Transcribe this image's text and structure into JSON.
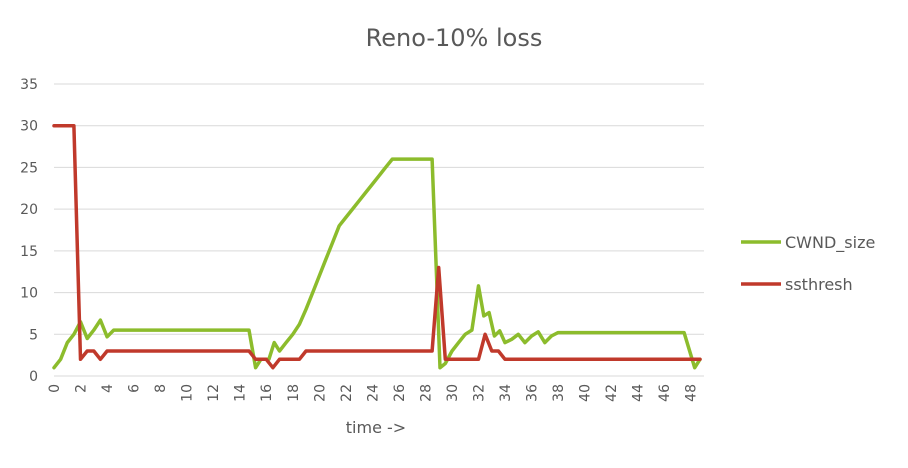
{
  "chart_data": {
    "type": "line",
    "title": "Reno-10% loss",
    "xlabel": "time ->",
    "ylabel": "",
    "ylim": [
      0,
      35
    ],
    "xlim": [
      0,
      49
    ],
    "yticks": [
      0,
      5,
      10,
      15,
      20,
      25,
      30,
      35
    ],
    "xticks": [
      0,
      2,
      4,
      6,
      8,
      10,
      12,
      14,
      16,
      18,
      20,
      22,
      24,
      26,
      28,
      30,
      32,
      34,
      36,
      38,
      40,
      42,
      44,
      46,
      48
    ],
    "grid": true,
    "legend_position": "right",
    "colors": {
      "CWND_size": "#8cbc2c",
      "ssthresh": "#c0392b"
    },
    "series": [
      {
        "name": "CWND_size",
        "color": "#8cbc2c",
        "points": [
          [
            0,
            1
          ],
          [
            0.5,
            2
          ],
          [
            1,
            4
          ],
          [
            1.5,
            5
          ],
          [
            2,
            6.5
          ],
          [
            2.5,
            4.5
          ],
          [
            3,
            5.5
          ],
          [
            3.5,
            6.7
          ],
          [
            4,
            4.7
          ],
          [
            4.5,
            5.5
          ],
          [
            5,
            5.5
          ],
          [
            10,
            5.5
          ],
          [
            14,
            5.5
          ],
          [
            14.7,
            5.5
          ],
          [
            15.2,
            1
          ],
          [
            15.6,
            2
          ],
          [
            16.2,
            2
          ],
          [
            16.6,
            4
          ],
          [
            17,
            3
          ],
          [
            17.5,
            4
          ],
          [
            18,
            5
          ],
          [
            18.5,
            6.2
          ],
          [
            19,
            8
          ],
          [
            19.5,
            10
          ],
          [
            20,
            12
          ],
          [
            20.5,
            14
          ],
          [
            21,
            16
          ],
          [
            21.5,
            18
          ],
          [
            22,
            19
          ],
          [
            22.5,
            20
          ],
          [
            23,
            21
          ],
          [
            23.5,
            22
          ],
          [
            24,
            23
          ],
          [
            24.5,
            24
          ],
          [
            25,
            25
          ],
          [
            25.5,
            26
          ],
          [
            26,
            26
          ],
          [
            28.5,
            26
          ],
          [
            29.1,
            1
          ],
          [
            29.5,
            1.5
          ],
          [
            30,
            3
          ],
          [
            30.5,
            4
          ],
          [
            31,
            5
          ],
          [
            31.5,
            5.5
          ],
          [
            32,
            10.8
          ],
          [
            32.4,
            7.2
          ],
          [
            32.8,
            7.6
          ],
          [
            33.2,
            4.8
          ],
          [
            33.6,
            5.4
          ],
          [
            34,
            4
          ],
          [
            34.5,
            4.4
          ],
          [
            35,
            5
          ],
          [
            35.5,
            4
          ],
          [
            36,
            4.8
          ],
          [
            36.5,
            5.3
          ],
          [
            37,
            4
          ],
          [
            37.5,
            4.8
          ],
          [
            38,
            5.2
          ],
          [
            40,
            5.2
          ],
          [
            44,
            5.2
          ],
          [
            47.5,
            5.2
          ],
          [
            48.3,
            1
          ],
          [
            48.7,
            2
          ]
        ]
      },
      {
        "name": "ssthresh",
        "color": "#c0392b",
        "points": [
          [
            0,
            30
          ],
          [
            1.5,
            30
          ],
          [
            2,
            2
          ],
          [
            2.5,
            3
          ],
          [
            3,
            3
          ],
          [
            3.5,
            2
          ],
          [
            4,
            3
          ],
          [
            10,
            3
          ],
          [
            14.7,
            3
          ],
          [
            15.2,
            2
          ],
          [
            16,
            2
          ],
          [
            16.5,
            1
          ],
          [
            17,
            2
          ],
          [
            18.5,
            2
          ],
          [
            19,
            3
          ],
          [
            25,
            3
          ],
          [
            28.5,
            3
          ],
          [
            29,
            13
          ],
          [
            29.5,
            2
          ],
          [
            30,
            2
          ],
          [
            32,
            2
          ],
          [
            32.5,
            5
          ],
          [
            33,
            3
          ],
          [
            33.5,
            3
          ],
          [
            34,
            2
          ],
          [
            40,
            2
          ],
          [
            48.7,
            2
          ]
        ]
      }
    ]
  }
}
